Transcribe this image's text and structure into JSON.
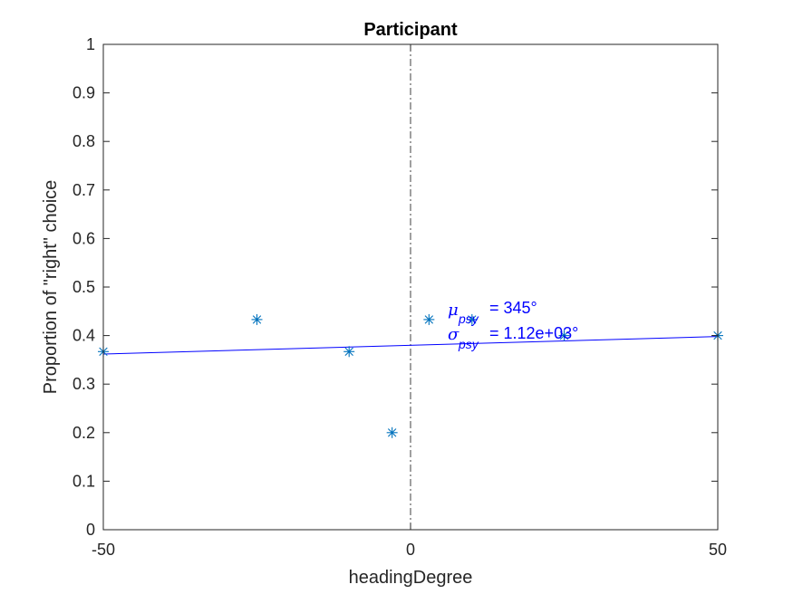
{
  "chart_data": {
    "type": "scatter",
    "title": "Participant",
    "xlabel": "headingDegree",
    "ylabel": "Proportion of \"right\" choice",
    "xlim": [
      -50,
      50
    ],
    "ylim": [
      0,
      1
    ],
    "xticks": [
      -50,
      0,
      50
    ],
    "xtick_labels": [
      "-50",
      "0",
      "50"
    ],
    "yticks": [
      0,
      0.1,
      0.2,
      0.3,
      0.4,
      0.5,
      0.6,
      0.7,
      0.8,
      0.9,
      1
    ],
    "ytick_labels": [
      "0",
      "0.1",
      "0.2",
      "0.3",
      "0.4",
      "0.5",
      "0.6",
      "0.7",
      "0.8",
      "0.9",
      "1"
    ],
    "grid": false,
    "reference_line": {
      "x": 0,
      "style": "dash-dot",
      "color": "#000000"
    },
    "series": [
      {
        "name": "data",
        "marker": "asterisk",
        "color": "#0072bd",
        "x": [
          -50,
          -25,
          -10,
          -3,
          3,
          10,
          25,
          50
        ],
        "y": [
          0.367,
          0.433,
          0.367,
          0.2,
          0.433,
          0.433,
          0.4,
          0.4
        ]
      },
      {
        "name": "psychometric fit",
        "type": "line",
        "color": "#0000ff",
        "x": [
          -50,
          50
        ],
        "y": [
          0.362,
          0.398
        ]
      }
    ],
    "annotation": {
      "mu_symbol": "μ",
      "sigma_symbol": "σ",
      "subscript": "psy",
      "mu_text": "=    345°",
      "sigma_text": "= 1.12e+03°",
      "color": "#0000ff"
    }
  }
}
